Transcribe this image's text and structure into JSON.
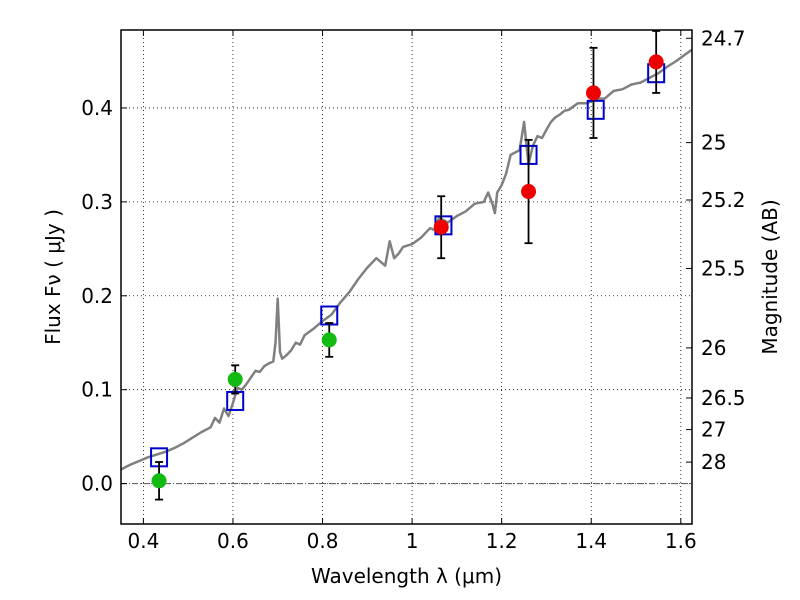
{
  "chart_data": {
    "type": "scatter",
    "xlabel": "Wavelength  λ (μm)",
    "ylabel": "Flux  Fν  ( μJy )",
    "y2label": "Magnitude (AB)",
    "xlim": [
      0.35,
      1.625
    ],
    "ylim": [
      -0.043,
      0.483
    ],
    "x_ticks": [
      0.4,
      0.6,
      0.8,
      1.0,
      1.2,
      1.4,
      1.6
    ],
    "x_tick_labels": [
      "0.4",
      "0.6",
      "0.8",
      "1",
      "1.2",
      "1.4",
      "1.6"
    ],
    "y_ticks": [
      0.0,
      0.1,
      0.2,
      0.3,
      0.4
    ],
    "y_tick_labels": [
      "0.0",
      "0.1",
      "0.2",
      "0.3",
      "0.4"
    ],
    "mag_ticks": [
      {
        "label": "24.7",
        "flux": 0.4742
      },
      {
        "label": "25",
        "flux": 0.3631
      },
      {
        "label": "25.2",
        "flux": 0.302
      },
      {
        "label": "25.5",
        "flux": 0.2291
      },
      {
        "label": "26",
        "flux": 0.1445
      },
      {
        "label": "26.5",
        "flux": 0.0912
      },
      {
        "label": "27",
        "flux": 0.0575
      },
      {
        "label": "28",
        "flux": 0.0229
      }
    ],
    "grid": true,
    "colors": {
      "spectrum": "#808080",
      "model": "#0000cc",
      "optical": "#11bb11",
      "nir": "#ee0000",
      "errorbar": "#000000",
      "zero_line": "#555555"
    },
    "series": [
      {
        "type": "line",
        "x": [
          0.35,
          0.37,
          0.39,
          0.41,
          0.43,
          0.45,
          0.47,
          0.49,
          0.51,
          0.53,
          0.55,
          0.56,
          0.57,
          0.58,
          0.59,
          0.6,
          0.61,
          0.62,
          0.63,
          0.64,
          0.65,
          0.66,
          0.67,
          0.68,
          0.69,
          0.695,
          0.7,
          0.705,
          0.71,
          0.72,
          0.73,
          0.74,
          0.75,
          0.76,
          0.78,
          0.8,
          0.82,
          0.84,
          0.86,
          0.88,
          0.9,
          0.92,
          0.94,
          0.95,
          0.96,
          0.97,
          0.98,
          1.0,
          1.02,
          1.04,
          1.05,
          1.06,
          1.08,
          1.1,
          1.12,
          1.14,
          1.16,
          1.17,
          1.18,
          1.185,
          1.19,
          1.2,
          1.21,
          1.22,
          1.24,
          1.25,
          1.26,
          1.27,
          1.28,
          1.29,
          1.3,
          1.31,
          1.32,
          1.33,
          1.34,
          1.35,
          1.37,
          1.39,
          1.41,
          1.43,
          1.45,
          1.47,
          1.49,
          1.51,
          1.53,
          1.55,
          1.57,
          1.59,
          1.61,
          1.625
        ],
        "y": [
          0.015,
          0.02,
          0.024,
          0.028,
          0.031,
          0.034,
          0.038,
          0.043,
          0.049,
          0.055,
          0.06,
          0.07,
          0.065,
          0.08,
          0.072,
          0.086,
          0.102,
          0.1,
          0.106,
          0.113,
          0.12,
          0.119,
          0.125,
          0.128,
          0.13,
          0.15,
          0.197,
          0.14,
          0.133,
          0.137,
          0.142,
          0.15,
          0.148,
          0.158,
          0.165,
          0.173,
          0.18,
          0.193,
          0.204,
          0.218,
          0.23,
          0.24,
          0.232,
          0.258,
          0.24,
          0.245,
          0.252,
          0.255,
          0.262,
          0.272,
          0.27,
          0.283,
          0.278,
          0.285,
          0.29,
          0.298,
          0.3,
          0.31,
          0.297,
          0.288,
          0.31,
          0.318,
          0.33,
          0.35,
          0.355,
          0.385,
          0.34,
          0.36,
          0.37,
          0.368,
          0.377,
          0.385,
          0.39,
          0.393,
          0.397,
          0.398,
          0.405,
          0.405,
          0.41,
          0.41,
          0.418,
          0.42,
          0.425,
          0.427,
          0.432,
          0.437,
          0.444,
          0.45,
          0.457,
          0.462
        ]
      },
      {
        "type": "scatter",
        "marker": "square",
        "x": [
          0.435,
          0.605,
          0.815,
          1.07,
          1.26,
          1.41,
          1.545
        ],
        "y": [
          0.028,
          0.088,
          0.179,
          0.275,
          0.35,
          0.398,
          0.437
        ]
      },
      {
        "type": "scatter",
        "marker": "circle",
        "x": [
          0.435,
          0.605,
          0.815
        ],
        "y": [
          0.003,
          0.111,
          0.153
        ],
        "yerr": [
          0.02,
          0.015,
          0.018
        ]
      },
      {
        "type": "scatter",
        "marker": "circle",
        "x": [
          1.065,
          1.26,
          1.405,
          1.545
        ],
        "y": [
          0.273,
          0.311,
          0.416,
          0.449
        ],
        "yerr": [
          0.033,
          0.055,
          0.048,
          0.033
        ]
      }
    ]
  }
}
